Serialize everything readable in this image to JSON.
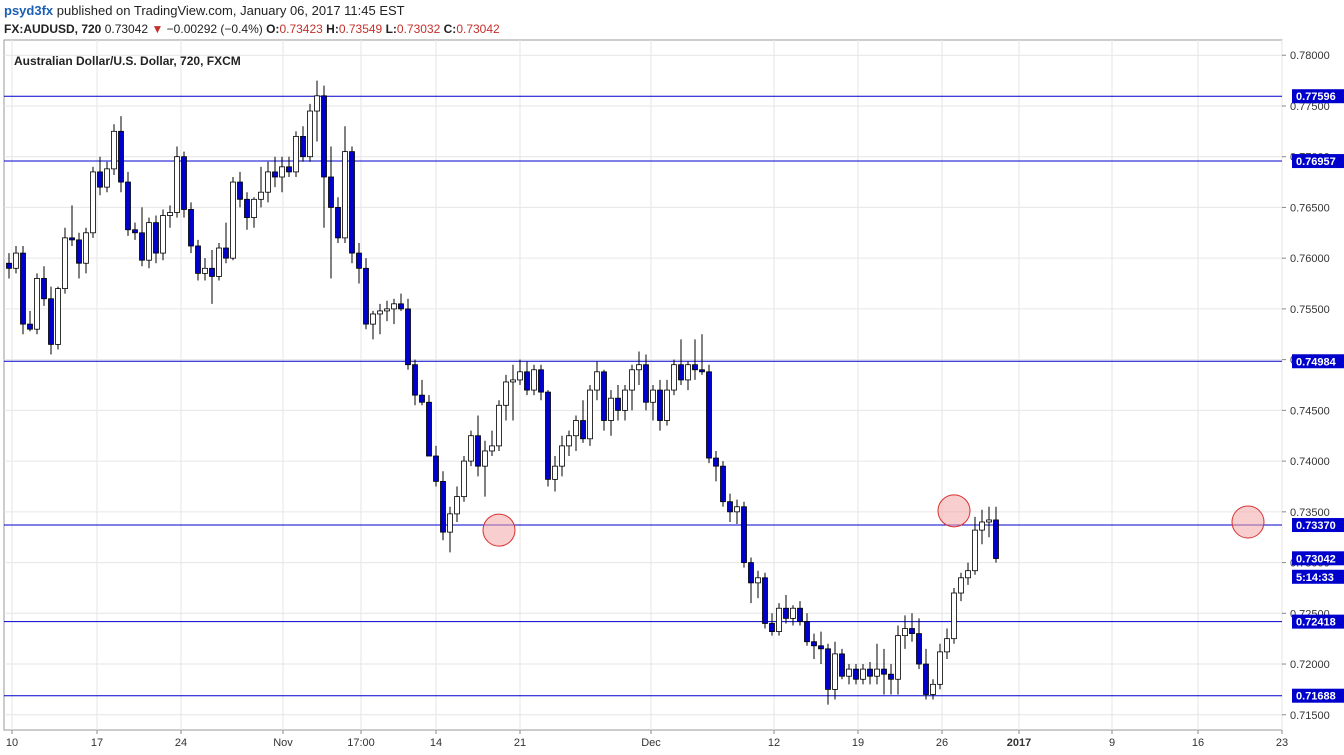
{
  "header": {
    "author": "psyd3fx",
    "published": "published on TradingView.com, January 06, 2017 11:45 EST",
    "symbol": "FX:AUDUSD, 720",
    "last": "0.73042",
    "down_arrow": "▼",
    "change": "−0.00292 (−0.4%)",
    "open_key": "O:",
    "open": "0.73423",
    "high_key": "H:",
    "high": "0.73549",
    "low_key": "L:",
    "low": "0.73032",
    "close_key": "C:",
    "close": "0.73042"
  },
  "colors": {
    "up_fill": "#ffffff",
    "down_fill": "#0000cc",
    "wick": "#000000",
    "hline": "#0000cc",
    "label_bg": "#0000cc",
    "marker_fill": "#f4a6a6",
    "marker_stroke": "#d93030",
    "grid": "#e6e6e6"
  },
  "chart_data": {
    "type": "candlestick",
    "title": "Australian Dollar/U.S. Dollar, 720, FXCM",
    "ylim": [
      0.7135,
      0.7815
    ],
    "y_ticks": [
      "0.78000",
      "0.77500",
      "0.77000",
      "0.76500",
      "0.76000",
      "0.75500",
      "0.75000",
      "0.74500",
      "0.74000",
      "0.73500",
      "0.73000",
      "0.72500",
      "0.72000",
      "0.71500"
    ],
    "x_ticks": [
      "10",
      "17",
      "24",
      "Nov",
      "17:00",
      "14",
      "21",
      "Dec",
      "12",
      "19",
      "26",
      "2017",
      "9",
      "16",
      "23"
    ],
    "x_ticks_bold": [
      false,
      false,
      false,
      false,
      false,
      false,
      false,
      false,
      false,
      false,
      false,
      true,
      false,
      false,
      false
    ],
    "horizontal_levels": [
      0.77596,
      0.76957,
      0.74984,
      0.7337,
      0.72418,
      0.71688
    ],
    "price_labels": [
      {
        "text": "0.77596",
        "value": 0.77596
      },
      {
        "text": "0.76957",
        "value": 0.76957
      },
      {
        "text": "0.74984",
        "value": 0.74984
      },
      {
        "text": "0.73370",
        "value": 0.7337
      },
      {
        "text": "0.73042",
        "value": 0.73042
      },
      {
        "text": "5:14:33",
        "value": 0.7286
      },
      {
        "text": "0.72418",
        "value": 0.72418
      },
      {
        "text": "0.71688",
        "value": 0.71688
      }
    ],
    "markers": [
      {
        "candle": 70,
        "value": 0.7332
      },
      {
        "candle": 135,
        "value": 0.7351
      },
      {
        "candle": 177,
        "value": 0.734
      }
    ],
    "candles": [
      [
        0.7595,
        0.7605,
        0.758,
        0.759
      ],
      [
        0.759,
        0.7612,
        0.7585,
        0.7605
      ],
      [
        0.7605,
        0.7612,
        0.7525,
        0.7535
      ],
      [
        0.7535,
        0.7548,
        0.7528,
        0.753
      ],
      [
        0.753,
        0.7585,
        0.7525,
        0.758
      ],
      [
        0.758,
        0.7592,
        0.7553,
        0.756
      ],
      [
        0.756,
        0.7572,
        0.7505,
        0.7515
      ],
      [
        0.7515,
        0.7572,
        0.751,
        0.757
      ],
      [
        0.757,
        0.763,
        0.7565,
        0.762
      ],
      [
        0.762,
        0.7652,
        0.7612,
        0.7618
      ],
      [
        0.7618,
        0.7625,
        0.758,
        0.7595
      ],
      [
        0.7595,
        0.763,
        0.7585,
        0.7625
      ],
      [
        0.7625,
        0.769,
        0.762,
        0.7685
      ],
      [
        0.7685,
        0.77,
        0.7662,
        0.767
      ],
      [
        0.767,
        0.7695,
        0.7665,
        0.7688
      ],
      [
        0.7688,
        0.7732,
        0.7682,
        0.7725
      ],
      [
        0.7725,
        0.774,
        0.7665,
        0.7675
      ],
      [
        0.7675,
        0.7685,
        0.7622,
        0.7628
      ],
      [
        0.7628,
        0.7635,
        0.7618,
        0.7625
      ],
      [
        0.7625,
        0.765,
        0.7592,
        0.7598
      ],
      [
        0.7598,
        0.764,
        0.759,
        0.7635
      ],
      [
        0.7635,
        0.7642,
        0.7595,
        0.7605
      ],
      [
        0.7605,
        0.7648,
        0.7598,
        0.7642
      ],
      [
        0.7642,
        0.7652,
        0.763,
        0.7645
      ],
      [
        0.7645,
        0.771,
        0.764,
        0.77
      ],
      [
        0.77,
        0.7705,
        0.764,
        0.7648
      ],
      [
        0.7648,
        0.7655,
        0.7605,
        0.7612
      ],
      [
        0.7612,
        0.7618,
        0.7578,
        0.7585
      ],
      [
        0.7585,
        0.76,
        0.7578,
        0.759
      ],
      [
        0.759,
        0.7608,
        0.7555,
        0.7582
      ],
      [
        0.7582,
        0.7615,
        0.7578,
        0.761
      ],
      [
        0.761,
        0.7635,
        0.7595,
        0.76
      ],
      [
        0.76,
        0.768,
        0.7598,
        0.7675
      ],
      [
        0.7675,
        0.7685,
        0.765,
        0.7658
      ],
      [
        0.7658,
        0.7665,
        0.7628,
        0.764
      ],
      [
        0.764,
        0.766,
        0.763,
        0.7658
      ],
      [
        0.7658,
        0.769,
        0.765,
        0.7665
      ],
      [
        0.7665,
        0.7695,
        0.7655,
        0.7685
      ],
      [
        0.7685,
        0.77,
        0.767,
        0.768
      ],
      [
        0.768,
        0.77,
        0.7665,
        0.769
      ],
      [
        0.769,
        0.77,
        0.768,
        0.7685
      ],
      [
        0.7685,
        0.7725,
        0.768,
        0.772
      ],
      [
        0.772,
        0.773,
        0.7695,
        0.77
      ],
      [
        0.77,
        0.7752,
        0.7695,
        0.7745
      ],
      [
        0.7745,
        0.7775,
        0.7715,
        0.776
      ],
      [
        0.776,
        0.777,
        0.763,
        0.768
      ],
      [
        0.768,
        0.771,
        0.758,
        0.765
      ],
      [
        0.765,
        0.766,
        0.7615,
        0.762
      ],
      [
        0.762,
        0.773,
        0.7615,
        0.7705
      ],
      [
        0.7705,
        0.771,
        0.7595,
        0.7605
      ],
      [
        0.7605,
        0.7615,
        0.7575,
        0.759
      ],
      [
        0.759,
        0.76,
        0.753,
        0.7535
      ],
      [
        0.7535,
        0.7548,
        0.752,
        0.7545
      ],
      [
        0.7545,
        0.7555,
        0.7525,
        0.7548
      ],
      [
        0.7548,
        0.7558,
        0.7538,
        0.755
      ],
      [
        0.755,
        0.756,
        0.7535,
        0.7555
      ],
      [
        0.7555,
        0.7565,
        0.7548,
        0.755
      ],
      [
        0.755,
        0.756,
        0.749,
        0.7495
      ],
      [
        0.7495,
        0.75,
        0.7455,
        0.7465
      ],
      [
        0.7465,
        0.748,
        0.7455,
        0.7458
      ],
      [
        0.7458,
        0.7465,
        0.7405,
        0.7405
      ],
      [
        0.7405,
        0.7415,
        0.7375,
        0.738
      ],
      [
        0.738,
        0.739,
        0.7322,
        0.733
      ],
      [
        0.733,
        0.7355,
        0.731,
        0.7348
      ],
      [
        0.7348,
        0.7375,
        0.734,
        0.7365
      ],
      [
        0.7365,
        0.7405,
        0.736,
        0.74
      ],
      [
        0.74,
        0.743,
        0.7395,
        0.7425
      ],
      [
        0.7425,
        0.7445,
        0.7385,
        0.7395
      ],
      [
        0.7395,
        0.742,
        0.7365,
        0.741
      ],
      [
        0.741,
        0.743,
        0.7405,
        0.7415
      ],
      [
        0.7415,
        0.746,
        0.741,
        0.7455
      ],
      [
        0.7455,
        0.7485,
        0.744,
        0.7478
      ],
      [
        0.7478,
        0.7495,
        0.744,
        0.748
      ],
      [
        0.748,
        0.75,
        0.7475,
        0.7488
      ],
      [
        0.7488,
        0.7498,
        0.7465,
        0.747
      ],
      [
        0.747,
        0.7495,
        0.7465,
        0.749
      ],
      [
        0.749,
        0.7495,
        0.746,
        0.7468
      ],
      [
        0.7468,
        0.747,
        0.7375,
        0.7382
      ],
      [
        0.7382,
        0.7405,
        0.737,
        0.7395
      ],
      [
        0.7395,
        0.7425,
        0.7385,
        0.7415
      ],
      [
        0.7415,
        0.743,
        0.7405,
        0.7425
      ],
      [
        0.7425,
        0.7445,
        0.741,
        0.744
      ],
      [
        0.744,
        0.746,
        0.7418,
        0.7422
      ],
      [
        0.7422,
        0.7475,
        0.7415,
        0.747
      ],
      [
        0.747,
        0.7498,
        0.746,
        0.7488
      ],
      [
        0.7488,
        0.749,
        0.743,
        0.744
      ],
      [
        0.744,
        0.747,
        0.7425,
        0.7462
      ],
      [
        0.7462,
        0.7475,
        0.744,
        0.745
      ],
      [
        0.745,
        0.7475,
        0.744,
        0.747
      ],
      [
        0.747,
        0.7495,
        0.745,
        0.749
      ],
      [
        0.749,
        0.7508,
        0.7475,
        0.7495
      ],
      [
        0.7495,
        0.7505,
        0.745,
        0.7458
      ],
      [
        0.7458,
        0.7475,
        0.744,
        0.747
      ],
      [
        0.747,
        0.748,
        0.743,
        0.744
      ],
      [
        0.744,
        0.748,
        0.7435,
        0.747
      ],
      [
        0.747,
        0.75,
        0.7465,
        0.7495
      ],
      [
        0.7495,
        0.752,
        0.7475,
        0.748
      ],
      [
        0.748,
        0.7498,
        0.747,
        0.7495
      ],
      [
        0.7495,
        0.752,
        0.748,
        0.749
      ],
      [
        0.749,
        0.7525,
        0.7485,
        0.7488
      ],
      [
        0.7488,
        0.7495,
        0.7398,
        0.7403
      ],
      [
        0.7403,
        0.741,
        0.738,
        0.7395
      ],
      [
        0.7395,
        0.74,
        0.7355,
        0.736
      ],
      [
        0.736,
        0.7368,
        0.734,
        0.735
      ],
      [
        0.735,
        0.7362,
        0.7338,
        0.7355
      ],
      [
        0.7355,
        0.736,
        0.7295,
        0.73
      ],
      [
        0.73,
        0.7305,
        0.726,
        0.728
      ],
      [
        0.728,
        0.7292,
        0.7265,
        0.7285
      ],
      [
        0.7285,
        0.729,
        0.7235,
        0.724
      ],
      [
        0.724,
        0.725,
        0.7228,
        0.7232
      ],
      [
        0.7232,
        0.726,
        0.7228,
        0.7255
      ],
      [
        0.7255,
        0.7268,
        0.724,
        0.7245
      ],
      [
        0.7245,
        0.7258,
        0.7238,
        0.7255
      ],
      [
        0.7255,
        0.7262,
        0.7238,
        0.7242
      ],
      [
        0.7242,
        0.725,
        0.7218,
        0.7222
      ],
      [
        0.7222,
        0.723,
        0.7205,
        0.7218
      ],
      [
        0.7218,
        0.7232,
        0.72,
        0.7215
      ],
      [
        0.7215,
        0.722,
        0.716,
        0.7175
      ],
      [
        0.7175,
        0.7222,
        0.7165,
        0.721
      ],
      [
        0.721,
        0.7215,
        0.7185,
        0.7188
      ],
      [
        0.7188,
        0.72,
        0.718,
        0.7195
      ],
      [
        0.7195,
        0.72,
        0.718,
        0.7185
      ],
      [
        0.7185,
        0.72,
        0.718,
        0.7195
      ],
      [
        0.7195,
        0.7202,
        0.718,
        0.7188
      ],
      [
        0.7188,
        0.722,
        0.718,
        0.7195
      ],
      [
        0.7195,
        0.7215,
        0.717,
        0.719
      ],
      [
        0.719,
        0.72,
        0.717,
        0.7185
      ],
      [
        0.7185,
        0.7238,
        0.717,
        0.7228
      ],
      [
        0.7228,
        0.7248,
        0.7215,
        0.7235
      ],
      [
        0.7235,
        0.725,
        0.7222,
        0.723
      ],
      [
        0.723,
        0.7245,
        0.7195,
        0.72
      ],
      [
        0.72,
        0.7215,
        0.7165,
        0.717
      ],
      [
        0.717,
        0.7185,
        0.7165,
        0.718
      ],
      [
        0.718,
        0.722,
        0.7175,
        0.7212
      ],
      [
        0.7212,
        0.7235,
        0.7205,
        0.7225
      ],
      [
        0.7225,
        0.7275,
        0.722,
        0.727
      ],
      [
        0.727,
        0.729,
        0.7262,
        0.7285
      ],
      [
        0.7285,
        0.73,
        0.7278,
        0.7292
      ],
      [
        0.7292,
        0.7345,
        0.7288,
        0.7332
      ],
      [
        0.7332,
        0.7352,
        0.7318,
        0.734
      ],
      [
        0.734,
        0.7355,
        0.7325,
        0.7342
      ],
      [
        0.7342,
        0.7355,
        0.73,
        0.7304
      ]
    ]
  }
}
